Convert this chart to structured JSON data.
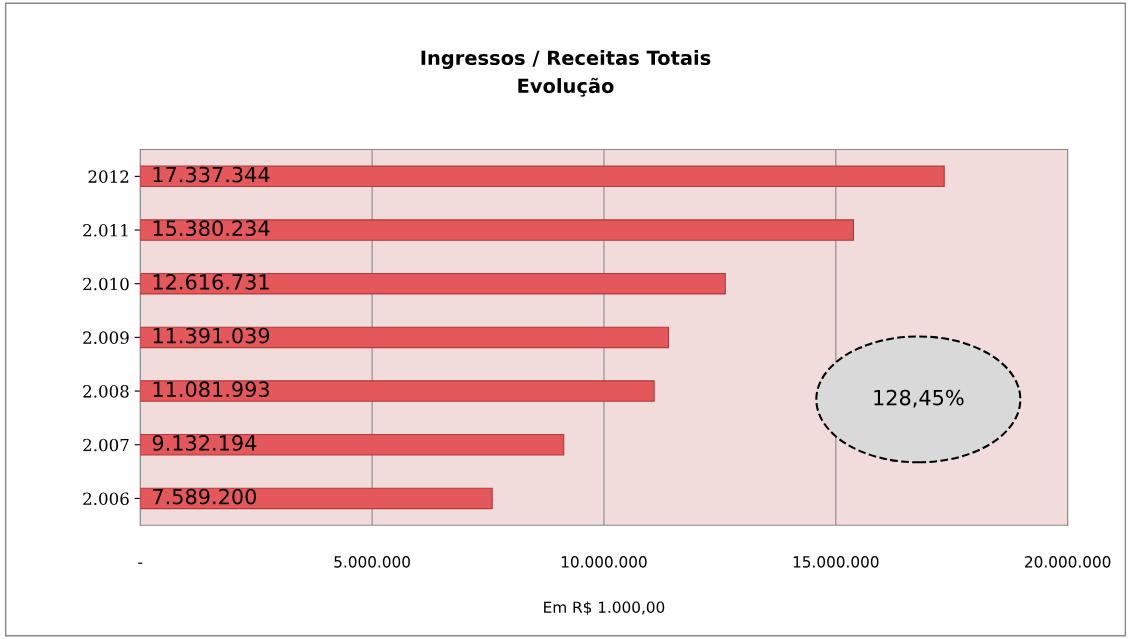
{
  "chart_data": {
    "type": "bar",
    "orientation": "horizontal",
    "title": "Ingressos / Receitas Totais\nEvolução",
    "xlabel": "Em R$ 1.000,00",
    "categories": [
      "2012",
      "2.011",
      "2.010",
      "2.009",
      "2.008",
      "2.007",
      "2.006"
    ],
    "values": [
      17337344,
      15380234,
      12616731,
      11391039,
      11081993,
      9132194,
      7589200
    ],
    "value_labels": [
      "17.337.344",
      "15.380.234",
      "12.616.731",
      "11.391.039",
      "11.081.993",
      "9.132.194",
      "7.589.200"
    ],
    "color": "#e4575b",
    "xlim": [
      0,
      20000000
    ],
    "xticks": [
      {
        "value": 0,
        "label": "-"
      },
      {
        "value": 5000000,
        "label": "5.000.000"
      },
      {
        "value": 10000000,
        "label": "10.000.000"
      },
      {
        "value": 15000000,
        "label": "15.000.000"
      },
      {
        "value": 20000000,
        "label": "20.000.000"
      }
    ],
    "grid": "x",
    "annotations": [
      "128,45%"
    ]
  }
}
